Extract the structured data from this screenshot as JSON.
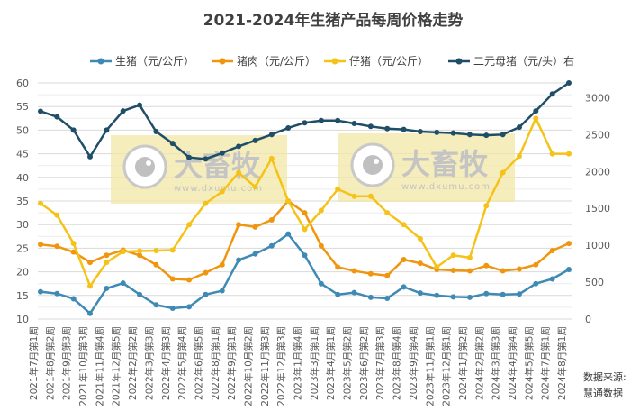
{
  "chart_data": {
    "type": "line",
    "title": "2021-2024年生猪产品每周价格走势",
    "categories": [
      "2021年7月第1周",
      "2021年8月第2周",
      "2021年9月第3周",
      "2021年10月第3周",
      "2021年11月第4周",
      "2021年12月第5周",
      "2022年2月第2周",
      "2022年3月第3周",
      "2022年4月第3周",
      "2022年5月第4周",
      "2022年6月第5周",
      "2022年8月第1周",
      "2022年9月第1周",
      "2022年10月第2周",
      "2022年11月第3周",
      "2022年12月第3周",
      "2023年1月第4周",
      "2023年3月第1周",
      "2023年4月第1周",
      "2023年5月第2周",
      "2023年6月第2周",
      "2023年7月第3周",
      "2023年8月第4周",
      "2023年9月第4周",
      "2023年11月第1周",
      "2023年12月第1周",
      "2024年1月第2周",
      "2024年2月第2周",
      "2024年3月第3周",
      "2024年4月第4周",
      "2024年5月第5周",
      "2024年7月第1周",
      "2024年8月第1周"
    ],
    "left_axis": {
      "ylim": [
        10,
        60
      ],
      "ticks": [
        10,
        15,
        20,
        25,
        30,
        35,
        40,
        45,
        50,
        55,
        60
      ]
    },
    "right_axis": {
      "ylim": [
        0,
        3200
      ],
      "ticks": [
        0,
        500,
        1000,
        1500,
        2000,
        2500,
        3000
      ]
    },
    "grid": true,
    "legend_position": "top",
    "series": [
      {
        "name": "生猪（元/公斤）",
        "axis": "left",
        "color": "#3f8ab4",
        "values": [
          15.8,
          15.4,
          14.3,
          11.2,
          16.5,
          17.6,
          15.2,
          13.0,
          12.3,
          12.6,
          15.2,
          16.0,
          22.5,
          23.8,
          25.5,
          28.0,
          23.5,
          17.5,
          15.2,
          15.6,
          14.6,
          14.4,
          16.8,
          15.5,
          15.0,
          14.7,
          14.6,
          15.4,
          15.2,
          15.3,
          17.5,
          18.5,
          20.5
        ]
      },
      {
        "name": "猪肉（元/公斤）",
        "axis": "left",
        "color": "#f0960e",
        "values": [
          25.8,
          25.4,
          24.2,
          22.0,
          23.5,
          24.6,
          23.5,
          21.5,
          18.5,
          18.3,
          19.8,
          21.5,
          30.0,
          29.5,
          31.0,
          35.0,
          32.5,
          25.5,
          21.0,
          20.2,
          19.6,
          19.2,
          22.6,
          21.8,
          20.5,
          20.3,
          20.2,
          21.3,
          20.2,
          20.6,
          21.5,
          24.5,
          26.0
        ]
      },
      {
        "name": "仔猪（元/公斤）",
        "axis": "left",
        "color": "#f5c218",
        "values": [
          34.5,
          32.0,
          26.0,
          17.0,
          22.0,
          24.3,
          24.4,
          24.5,
          24.6,
          30.0,
          34.5,
          37.0,
          41.0,
          38.0,
          44.0,
          35.0,
          29.0,
          33.0,
          37.5,
          36.0,
          36.0,
          32.5,
          30.0,
          27.0,
          21.0,
          23.5,
          23.0,
          34.0,
          41.0,
          44.5,
          52.5,
          45.0,
          45.0
        ]
      },
      {
        "name": "二元母猪（元/头）右",
        "axis": "right",
        "color": "#1f4e66",
        "values": [
          2816,
          2740,
          2560,
          2200,
          2560,
          2820,
          2900,
          2540,
          2380,
          2190,
          2170,
          2250,
          2340,
          2420,
          2500,
          2590,
          2660,
          2690,
          2690,
          2650,
          2610,
          2580,
          2570,
          2540,
          2530,
          2520,
          2500,
          2490,
          2500,
          2600,
          2820,
          3050,
          3200
        ]
      }
    ],
    "source_label": "数据来源:",
    "source_name": "慧通数据",
    "watermark": "大畜牧 www.dxumu.com"
  }
}
